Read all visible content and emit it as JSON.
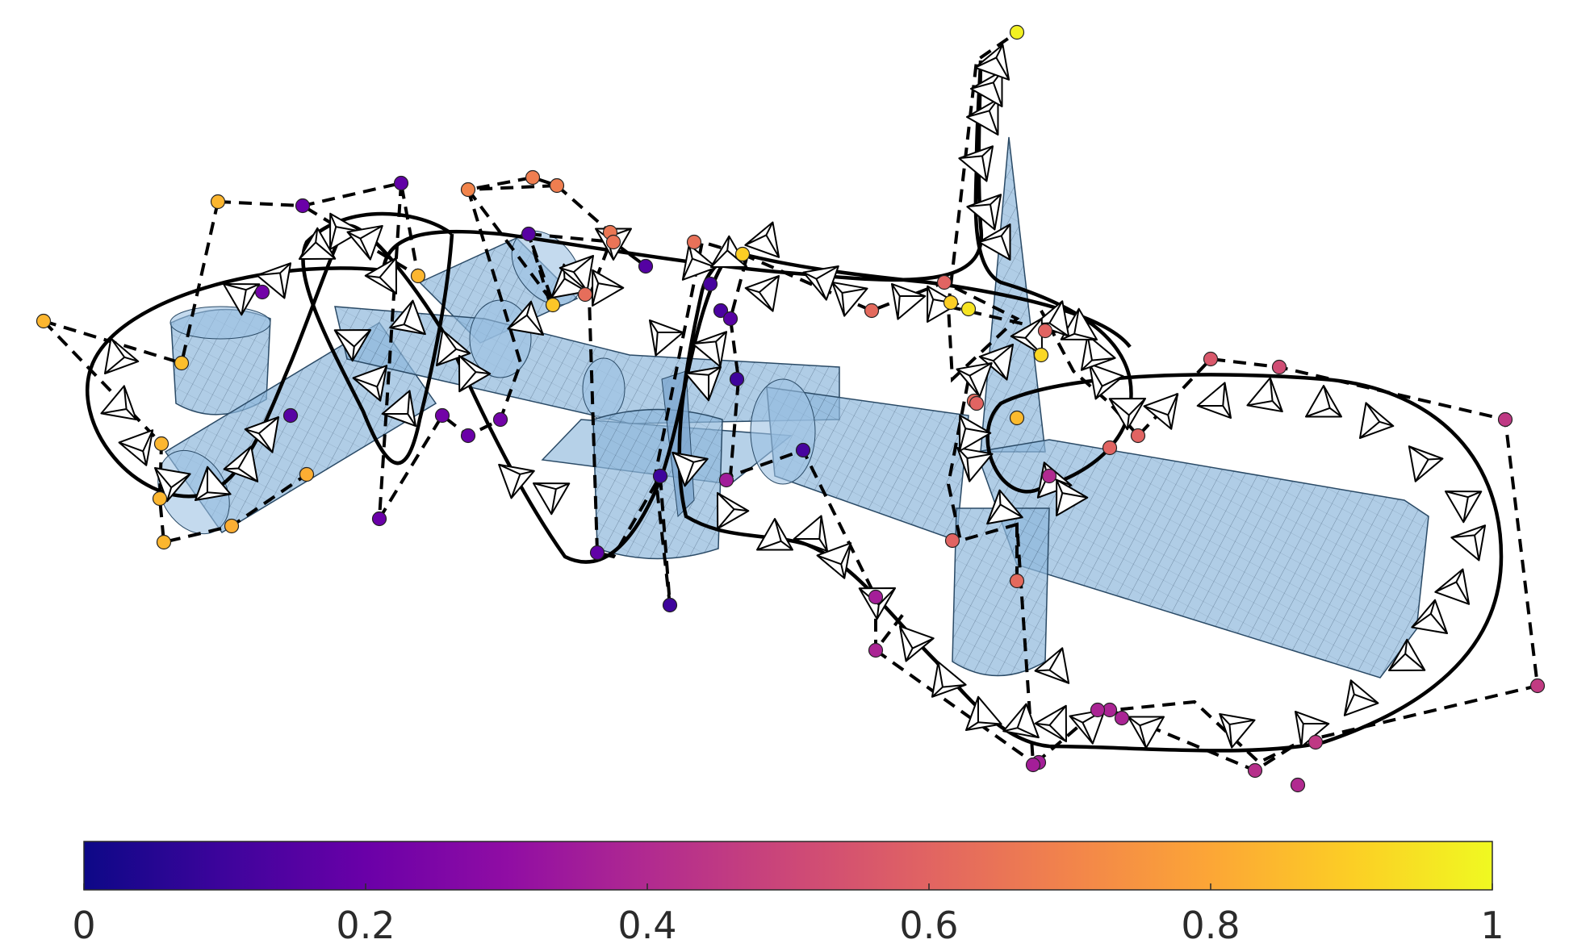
{
  "colorbar": {
    "colormap": "plasma",
    "min": 0,
    "max": 1,
    "ticks": [
      "0",
      "0.2",
      "0.4",
      "0.6",
      "0.8",
      "1"
    ],
    "tick_values": [
      0,
      0.2,
      0.4,
      0.6,
      0.8,
      1
    ],
    "stops": [
      "#0d0887",
      "#3e049c",
      "#6a00a8",
      "#900da4",
      "#b12a90",
      "#cc4778",
      "#e16462",
      "#f2844b",
      "#fca636",
      "#fcce25",
      "#f0f921"
    ]
  },
  "colors": {
    "obstacle_fill": "#8fb8dc",
    "obstacle_stroke": "#2a4a66",
    "trajectory": "#000000",
    "control_polygon": "#000000"
  },
  "legend": []
}
